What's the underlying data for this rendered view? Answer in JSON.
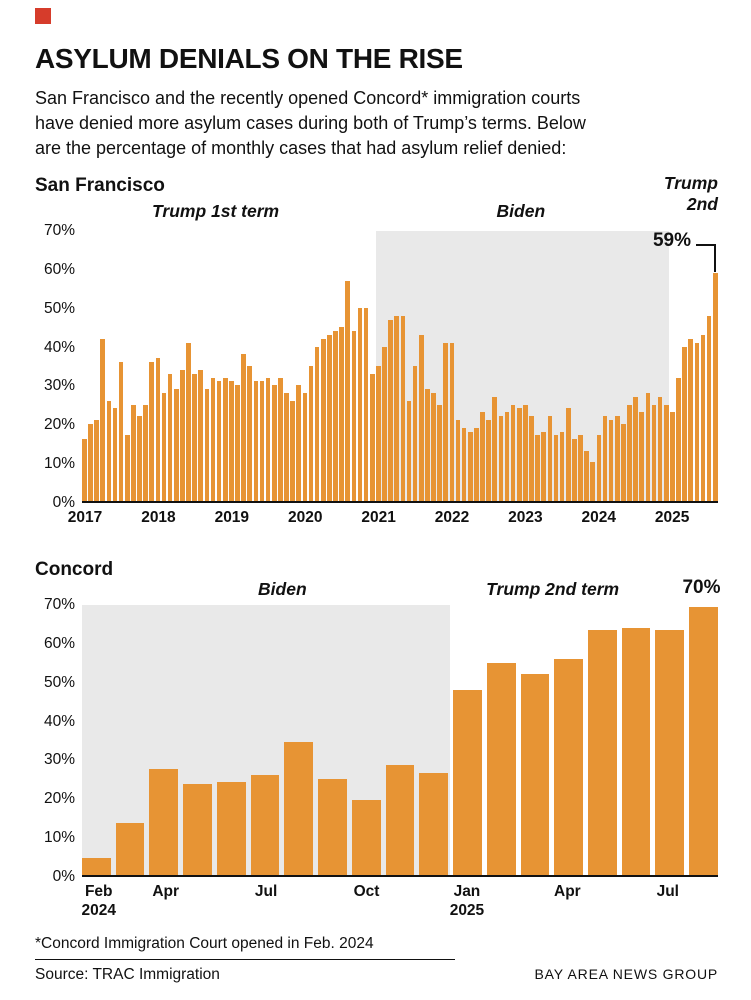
{
  "colors": {
    "bar": "#E79434",
    "shade": "#E9E9E9",
    "brand_red": "#D63C2B",
    "text": "#111111"
  },
  "header": {
    "title": "ASYLUM DENIALS ON THE RISE",
    "intro_lines": [
      "San Francisco and the recently opened Concord* immigration courts",
      "have denied more asylum cases during both of Trump’s terms. Below",
      "are the percentage of monthly cases that had asylum relief denied:"
    ]
  },
  "chart_data": [
    {
      "type": "bar",
      "title": "San Francisco",
      "ylim": [
        0,
        70
      ],
      "ytick_labels": [
        "70%",
        "60%",
        "50%",
        "40%",
        "30%",
        "20%",
        "10%",
        "0%"
      ],
      "x_start": "Jan 2017",
      "x_interval": "month",
      "xticks": [
        {
          "index": 0,
          "lines": [
            "2017"
          ]
        },
        {
          "index": 12,
          "lines": [
            "2018"
          ]
        },
        {
          "index": 24,
          "lines": [
            "2019"
          ]
        },
        {
          "index": 36,
          "lines": [
            "2020"
          ]
        },
        {
          "index": 48,
          "lines": [
            "2021"
          ]
        },
        {
          "index": 60,
          "lines": [
            "2022"
          ]
        },
        {
          "index": 72,
          "lines": [
            "2023"
          ]
        },
        {
          "index": 84,
          "lines": [
            "2024"
          ]
        },
        {
          "index": 96,
          "lines": [
            "2025"
          ]
        }
      ],
      "annotations": {
        "left": "Trump 1st term",
        "middle": "Biden",
        "right_line1": "Trump",
        "right_line2": "2nd",
        "callout": "59%"
      },
      "shaded_region": {
        "label": "Biden",
        "start_index": 48,
        "end_index": 96
      },
      "values": [
        16,
        20,
        21,
        42,
        26,
        24,
        36,
        17,
        25,
        22,
        25,
        36,
        37,
        28,
        33,
        29,
        34,
        41,
        33,
        34,
        29,
        32,
        31,
        32,
        31,
        30,
        38,
        35,
        31,
        31,
        32,
        30,
        32,
        28,
        26,
        30,
        28,
        35,
        40,
        42,
        43,
        44,
        45,
        57,
        44,
        50,
        50,
        33,
        35,
        40,
        47,
        48,
        48,
        26,
        35,
        43,
        29,
        28,
        25,
        41,
        41,
        21,
        19,
        18,
        19,
        23,
        21,
        27,
        22,
        23,
        25,
        24,
        25,
        22,
        17,
        18,
        22,
        17,
        18,
        24,
        16,
        17,
        13,
        10,
        17,
        22,
        21,
        22,
        20,
        25,
        27,
        23,
        28,
        25,
        27,
        25,
        23,
        32,
        40,
        42,
        41,
        43,
        48,
        59
      ]
    },
    {
      "type": "bar",
      "title": "Concord",
      "ylim": [
        0,
        70
      ],
      "ytick_labels": [
        "70%",
        "60%",
        "50%",
        "40%",
        "30%",
        "20%",
        "10%",
        "0%"
      ],
      "x_start": "Feb 2024",
      "x_interval": "month",
      "xticks": [
        {
          "index": 0,
          "lines": [
            "Feb",
            "2024"
          ]
        },
        {
          "index": 2,
          "lines": [
            "Apr"
          ]
        },
        {
          "index": 5,
          "lines": [
            "Jul"
          ]
        },
        {
          "index": 8,
          "lines": [
            "Oct"
          ]
        },
        {
          "index": 11,
          "lines": [
            "Jan",
            "2025"
          ]
        },
        {
          "index": 14,
          "lines": [
            "Apr"
          ]
        },
        {
          "index": 17,
          "lines": [
            "Jul"
          ]
        }
      ],
      "annotations": {
        "left": "Biden",
        "right": "Trump 2nd term",
        "callout": "70%"
      },
      "shaded_region": {
        "label": "Biden",
        "start_index": 0,
        "end_index": 11
      },
      "values": [
        4.5,
        13.5,
        27.5,
        23.5,
        24,
        26,
        34.5,
        25,
        19.5,
        28.5,
        26.5,
        48,
        55,
        52,
        56,
        63.5,
        64,
        63.5,
        69.5
      ]
    }
  ],
  "footer": {
    "note": "*Concord Immigration Court opened in Feb. 2024",
    "source": "Source: TRAC Immigration",
    "credit": "BAY AREA NEWS GROUP"
  }
}
